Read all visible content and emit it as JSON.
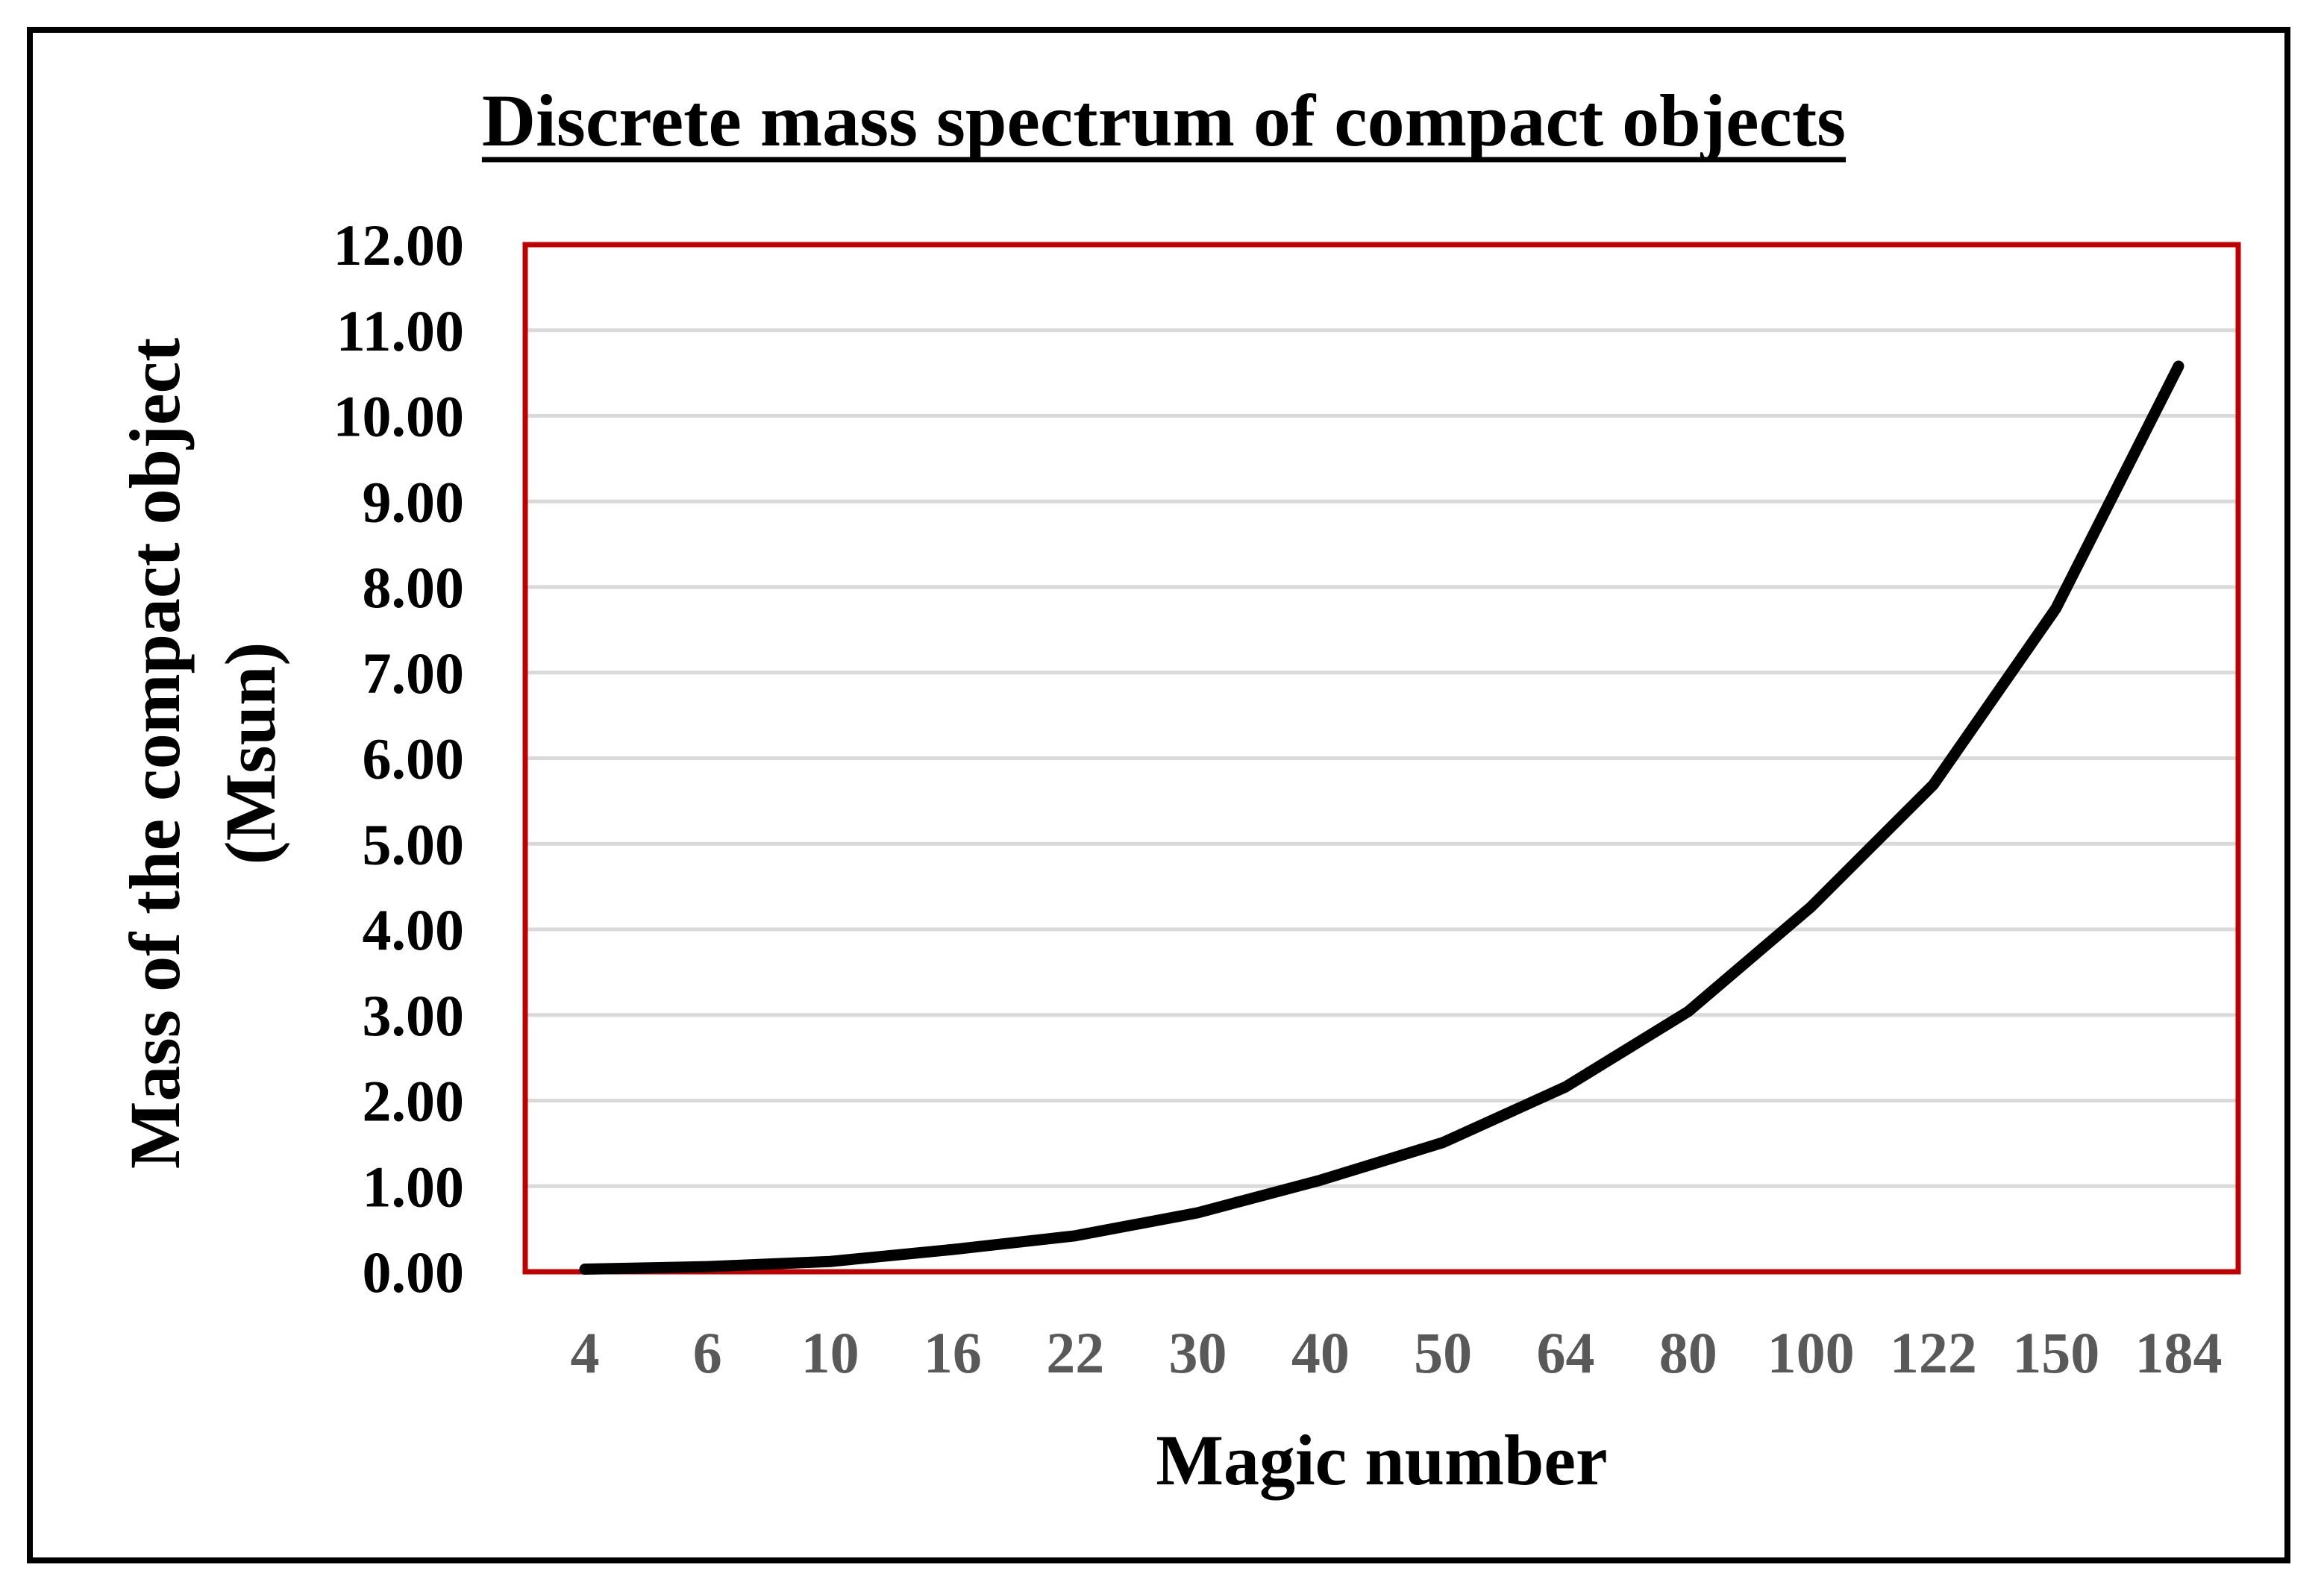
{
  "chart_data": {
    "type": "line",
    "title": "Discrete mass spectrum of compact objects",
    "xlabel": "Magic number",
    "ylabel_lines": [
      "Mass of the compact object",
      "(Msun)"
    ],
    "categories": [
      "4",
      "6",
      "10",
      "16",
      "22",
      "30",
      "40",
      "50",
      "64",
      "80",
      "100",
      "122",
      "150",
      "184"
    ],
    "series": [
      {
        "values": [
          0.03,
          0.06,
          0.12,
          0.26,
          0.42,
          0.69,
          1.07,
          1.51,
          2.16,
          3.04,
          4.26,
          5.69,
          7.75,
          10.58
        ]
      }
    ],
    "yticks": [
      "0.00",
      "1.00",
      "2.00",
      "3.00",
      "4.00",
      "5.00",
      "6.00",
      "7.00",
      "8.00",
      "9.00",
      "10.00",
      "11.00",
      "12.00"
    ],
    "ylim": [
      0,
      12
    ],
    "grid": true,
    "legend": "none",
    "colors": {
      "line": "#000000",
      "plot_border": "#c00000",
      "gridline": "#d9d9d9",
      "frame": "#000000",
      "xtick_text": "#595959"
    }
  }
}
